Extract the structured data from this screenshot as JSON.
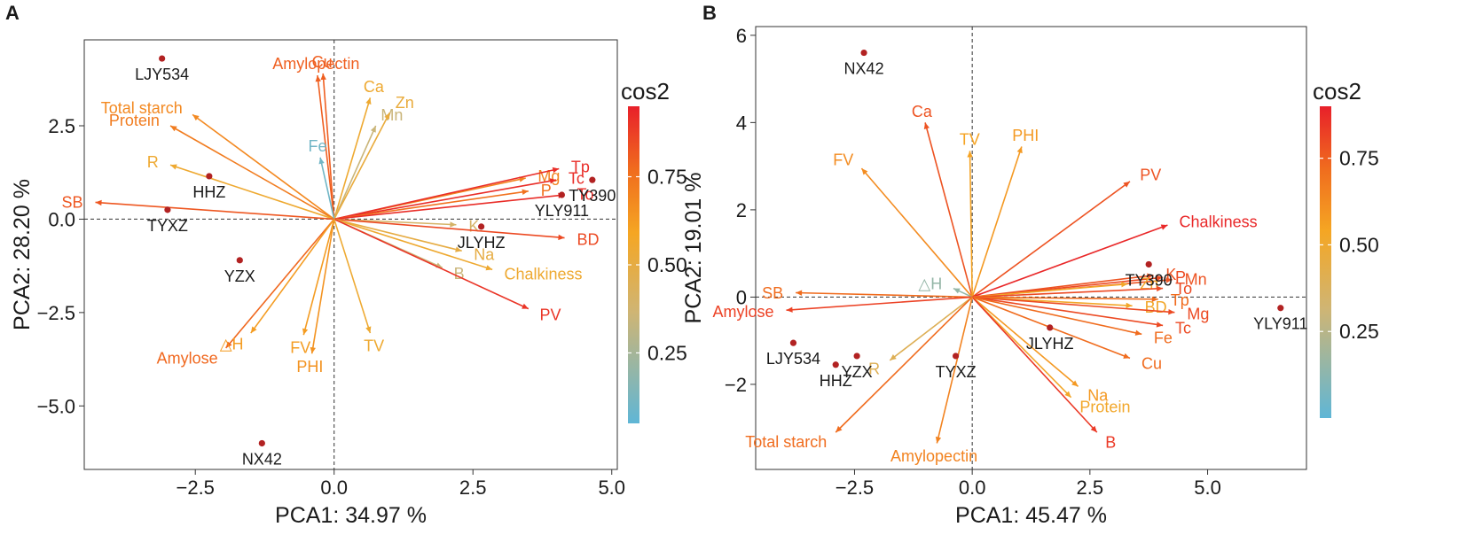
{
  "panels": [
    {
      "letter": "A",
      "colorbar_title": "cos2",
      "colorbar_ticks": [
        0.25,
        0.5,
        0.75
      ],
      "colorbar_tick_labels": [
        "0.25",
        "0.50",
        "0.75"
      ]
    },
    {
      "letter": "B",
      "colorbar_title": "cos2",
      "colorbar_ticks": [
        0.25,
        0.5,
        0.75
      ],
      "colorbar_tick_labels": [
        "0.25",
        "0.50",
        "0.75"
      ]
    }
  ],
  "colors": {
    "cos2_low": "#5fb6d6",
    "cos2_mid_low": "#cfb574",
    "cos2_mid": "#f5a623",
    "cos2_mid_high": "#f06c1e",
    "cos2_high": "#e8202a",
    "point": "#b22222",
    "text_dark": "#1a1a1a",
    "axis": "#333333"
  },
  "chart_data": [
    {
      "type": "scatter",
      "subtype": "pca_biplot",
      "title": "",
      "xlabel": "PCA1: 34.97 %",
      "ylabel": "PCA2: 28.20 %",
      "xlim": [
        -4.5,
        5.1
      ],
      "ylim": [
        -6.7,
        4.8
      ],
      "xticks": [
        -2.5,
        0.0,
        2.5,
        5.0
      ],
      "xtick_labels": [
        "−2.5",
        "0.0",
        "2.5",
        "5.0"
      ],
      "yticks": [
        -5.0,
        -2.5,
        0.0,
        2.5
      ],
      "ytick_labels": [
        "−5.0",
        "−2.5",
        "0.0",
        "2.5"
      ],
      "colorbar": {
        "title": "cos2",
        "range": [
          0.05,
          0.95
        ]
      },
      "samples": [
        {
          "name": "LJY534",
          "x": -3.1,
          "y": 4.3
        },
        {
          "name": "HHZ",
          "x": -2.25,
          "y": 1.15
        },
        {
          "name": "TYXZ",
          "x": -3.0,
          "y": 0.25
        },
        {
          "name": "YZX",
          "x": -1.7,
          "y": -1.1
        },
        {
          "name": "NX42",
          "x": -1.3,
          "y": -6.0
        },
        {
          "name": "TY390",
          "x": 4.65,
          "y": 1.05
        },
        {
          "name": "YLY911",
          "x": 4.1,
          "y": 0.65
        },
        {
          "name": "JLYHZ",
          "x": 2.65,
          "y": -0.2
        }
      ],
      "variables": [
        {
          "name": "Amylopectin",
          "x": -0.3,
          "y": 3.85,
          "cos2": 0.8
        },
        {
          "name": "Cu",
          "x": -0.2,
          "y": 3.9,
          "cos2": 0.8
        },
        {
          "name": "Ca",
          "x": 0.65,
          "y": 3.25,
          "cos2": 0.55
        },
        {
          "name": "Mn",
          "x": 0.75,
          "y": 2.5,
          "cos2": 0.35
        },
        {
          "name": "Zn",
          "x": 1.0,
          "y": 2.85,
          "cos2": 0.52
        },
        {
          "name": "Total starch",
          "x": -2.55,
          "y": 2.8,
          "cos2": 0.68
        },
        {
          "name": "Protein",
          "x": -2.95,
          "y": 2.5,
          "cos2": 0.72
        },
        {
          "name": "R",
          "x": -2.95,
          "y": 1.45,
          "cos2": 0.55
        },
        {
          "name": "Fe",
          "x": -0.25,
          "y": 1.65,
          "cos2": 0.1
        },
        {
          "name": "SB",
          "x": -4.3,
          "y": 0.45,
          "cos2": 0.82
        },
        {
          "name": "Mg",
          "x": 3.45,
          "y": 1.1,
          "cos2": 0.7
        },
        {
          "name": "Tp",
          "x": 4.05,
          "y": 1.35,
          "cos2": 0.92
        },
        {
          "name": "Tc",
          "x": 4.0,
          "y": 1.05,
          "cos2": 0.92
        },
        {
          "name": "P",
          "x": 3.5,
          "y": 0.75,
          "cos2": 0.75
        },
        {
          "name": "To",
          "x": 4.15,
          "y": 0.65,
          "cos2": 0.92
        },
        {
          "name": "K",
          "x": 2.2,
          "y": -0.15,
          "cos2": 0.4
        },
        {
          "name": "BD",
          "x": 4.15,
          "y": -0.5,
          "cos2": 0.85
        },
        {
          "name": "Na",
          "x": 2.3,
          "y": -0.85,
          "cos2": 0.5
        },
        {
          "name": "Chalkiness",
          "x": 2.85,
          "y": -1.35,
          "cos2": 0.55
        },
        {
          "name": "B",
          "x": 1.95,
          "y": -1.3,
          "cos2": 0.35
        },
        {
          "name": "PV",
          "x": 3.5,
          "y": -2.4,
          "cos2": 0.9
        },
        {
          "name": "Amylose",
          "x": -1.95,
          "y": -3.45,
          "cos2": 0.78
        },
        {
          "name": "△H",
          "x": -1.5,
          "y": -3.05,
          "cos2": 0.62
        },
        {
          "name": "FV",
          "x": -0.55,
          "y": -3.1,
          "cos2": 0.62
        },
        {
          "name": "PHI",
          "x": -0.4,
          "y": -3.6,
          "cos2": 0.65
        },
        {
          "name": "TV",
          "x": 0.65,
          "y": -3.05,
          "cos2": 0.55
        }
      ]
    },
    {
      "type": "scatter",
      "subtype": "pca_biplot",
      "title": "",
      "xlabel": "PCA1: 45.47 %",
      "ylabel": "PCA2: 19.01 %",
      "xlim": [
        -4.6,
        7.1
      ],
      "ylim": [
        -3.95,
        6.2
      ],
      "xticks": [
        -2.5,
        0.0,
        2.5,
        5.0
      ],
      "xtick_labels": [
        "−2.5",
        "0.0",
        "2.5",
        "5.0"
      ],
      "yticks": [
        -2,
        0,
        2,
        4,
        6
      ],
      "ytick_labels": [
        "−2",
        "0",
        "2",
        "4",
        "6"
      ],
      "colorbar": {
        "title": "cos2",
        "range": [
          0.0,
          0.9
        ]
      },
      "samples": [
        {
          "name": "NX42",
          "x": -2.3,
          "y": 5.6
        },
        {
          "name": "TY390",
          "x": 3.75,
          "y": 0.75
        },
        {
          "name": "YLY911",
          "x": 6.55,
          "y": -0.25
        },
        {
          "name": "JLYHZ",
          "x": 1.65,
          "y": -0.7
        },
        {
          "name": "LJY534",
          "x": -3.8,
          "y": -1.05
        },
        {
          "name": "YZX",
          "x": -2.45,
          "y": -1.35
        },
        {
          "name": "HHZ",
          "x": -2.9,
          "y": -1.55
        },
        {
          "name": "TYXZ",
          "x": -0.35,
          "y": -1.35
        }
      ],
      "variables": [
        {
          "name": "Ca",
          "x": -1.0,
          "y": 4.0,
          "cos2": 0.78
        },
        {
          "name": "TV",
          "x": -0.05,
          "y": 3.35,
          "cos2": 0.55
        },
        {
          "name": "PHI",
          "x": 1.05,
          "y": 3.45,
          "cos2": 0.58
        },
        {
          "name": "FV",
          "x": -2.35,
          "y": 2.95,
          "cos2": 0.62
        },
        {
          "name": "PV",
          "x": 3.35,
          "y": 2.65,
          "cos2": 0.78
        },
        {
          "name": "Chalkiness",
          "x": 4.15,
          "y": 1.65,
          "cos2": 0.88
        },
        {
          "name": "K",
          "x": 3.85,
          "y": 0.5,
          "cos2": 0.78
        },
        {
          "name": "P",
          "x": 4.05,
          "y": 0.45,
          "cos2": 0.8
        },
        {
          "name": "Mn",
          "x": 4.25,
          "y": 0.4,
          "cos2": 0.78
        },
        {
          "name": "Zn",
          "x": 3.3,
          "y": 0.3,
          "cos2": 0.52
        },
        {
          "name": "To",
          "x": 4.05,
          "y": 0.2,
          "cos2": 0.8
        },
        {
          "name": "Tp",
          "x": 3.95,
          "y": -0.05,
          "cos2": 0.72
        },
        {
          "name": "BD",
          "x": 3.4,
          "y": -0.2,
          "cos2": 0.52
        },
        {
          "name": "Mg",
          "x": 4.3,
          "y": -0.35,
          "cos2": 0.8
        },
        {
          "name": "Tc",
          "x": 4.05,
          "y": -0.65,
          "cos2": 0.8
        },
        {
          "name": "Fe",
          "x": 3.6,
          "y": -0.85,
          "cos2": 0.72
        },
        {
          "name": "Cu",
          "x": 3.35,
          "y": -1.4,
          "cos2": 0.72
        },
        {
          "name": "Na",
          "x": 2.25,
          "y": -2.05,
          "cos2": 0.58
        },
        {
          "name": "Protein",
          "x": 2.1,
          "y": -2.3,
          "cos2": 0.52
        },
        {
          "name": "B",
          "x": 2.65,
          "y": -3.1,
          "cos2": 0.84
        },
        {
          "name": "△H",
          "x": -0.4,
          "y": 0.2,
          "cos2": 0.15
        },
        {
          "name": "SB",
          "x": -3.75,
          "y": 0.1,
          "cos2": 0.72
        },
        {
          "name": "Amylose",
          "x": -3.95,
          "y": -0.3,
          "cos2": 0.82
        },
        {
          "name": "R",
          "x": -1.75,
          "y": -1.45,
          "cos2": 0.4
        },
        {
          "name": "Total starch",
          "x": -2.9,
          "y": -3.1,
          "cos2": 0.72
        },
        {
          "name": "Amylopectin",
          "x": -0.75,
          "y": -3.35,
          "cos2": 0.65
        }
      ]
    }
  ]
}
